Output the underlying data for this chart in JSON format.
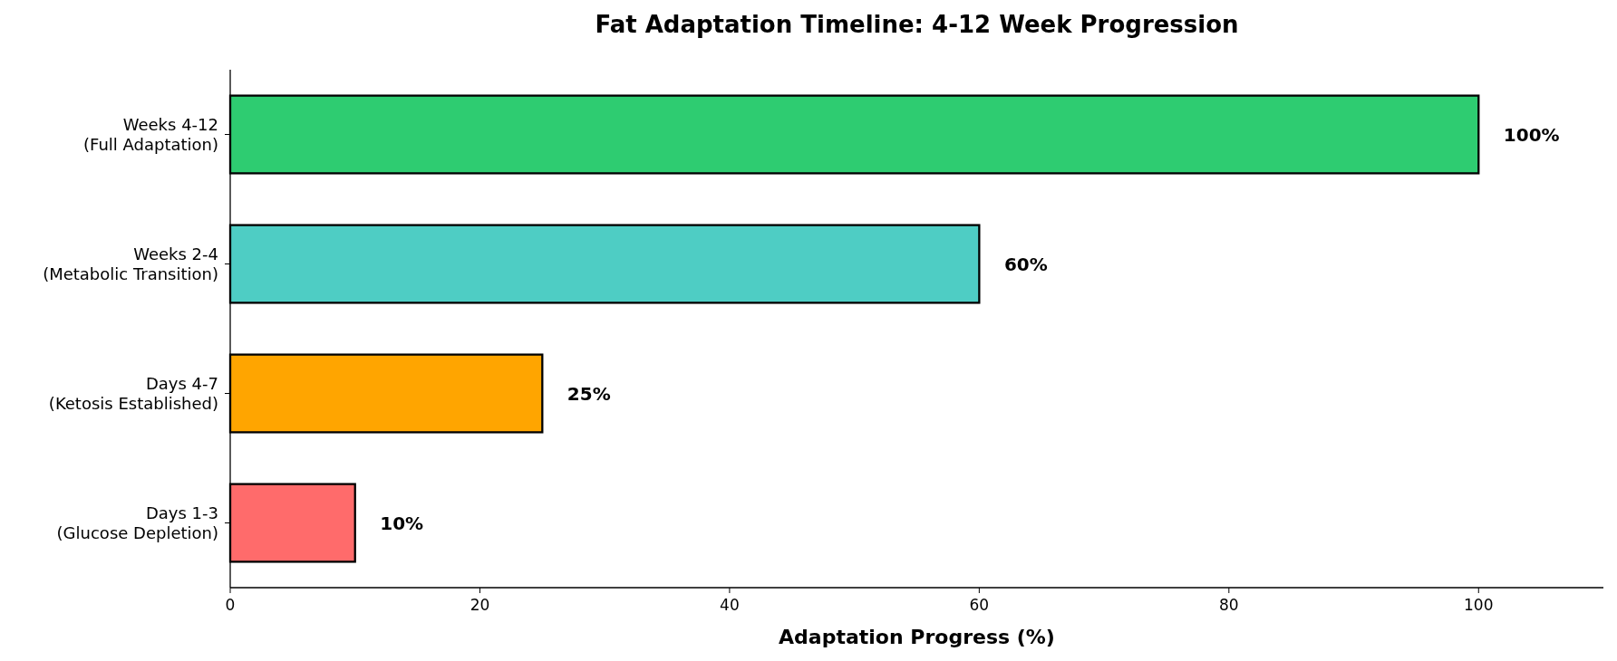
{
  "chart_data": {
    "type": "bar",
    "orientation": "horizontal",
    "title": "Fat Adaptation Timeline: 4-12 Week Progression",
    "xlabel": "Adaptation Progress (%)",
    "categories": [
      "Weeks 4-12\n(Full Adaptation)",
      "Weeks 2-4\n(Metabolic Transition)",
      "Days 4-7\n(Ketosis Established)",
      "Days 1-3\n(Glucose Depletion)"
    ],
    "values": [
      100,
      60,
      25,
      10
    ],
    "colors": [
      "#2ecc71",
      "#4ecdc4",
      "#ffa500",
      "#ff6b6b"
    ],
    "value_labels": [
      "100%",
      "60%",
      "25%",
      "10%"
    ],
    "xlim": [
      0,
      110
    ],
    "xticks": [
      0,
      20,
      40,
      60,
      80,
      100
    ],
    "grid": false
  }
}
